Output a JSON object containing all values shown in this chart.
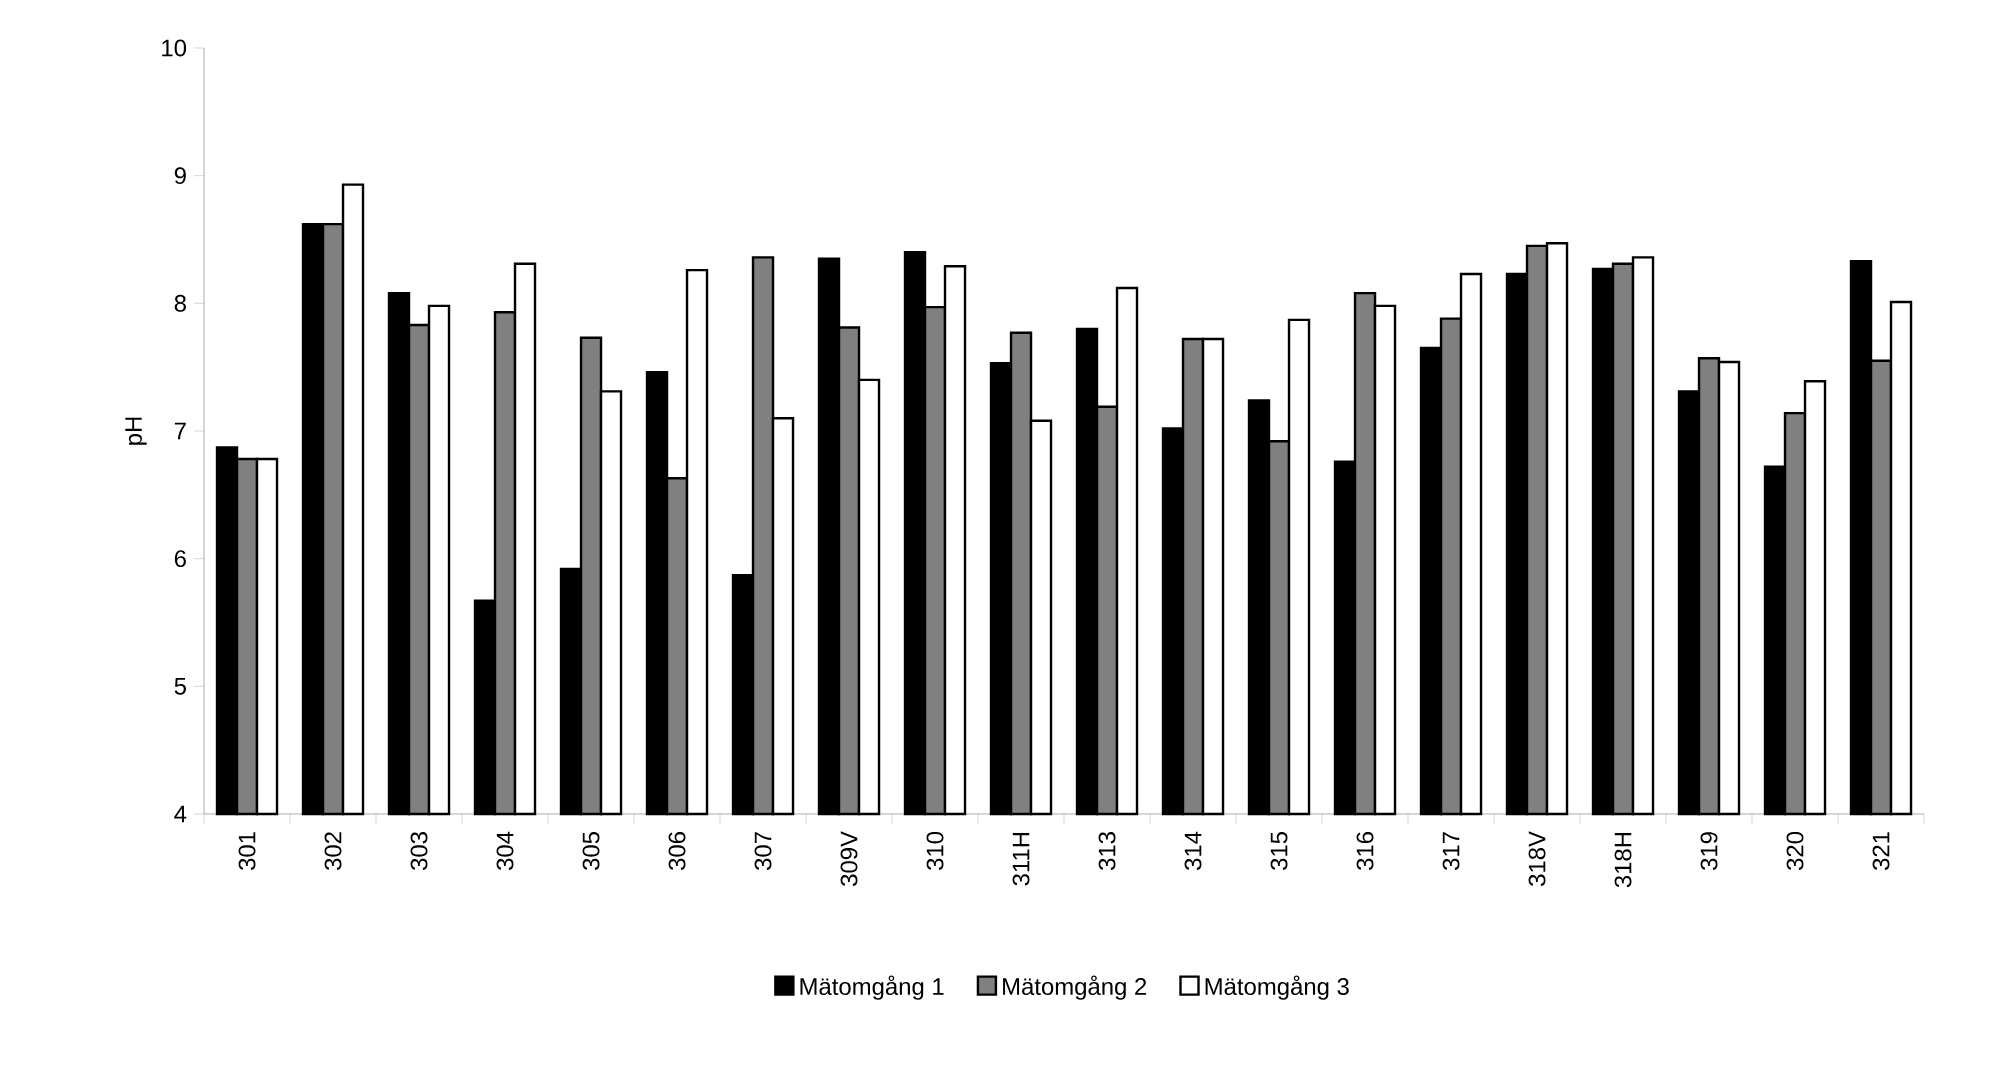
{
  "chart_data": {
    "type": "bar",
    "ylabel": "pH",
    "categories": [
      "301",
      "302",
      "303",
      "304",
      "305",
      "306",
      "307",
      "309V",
      "310",
      "311H",
      "313",
      "314",
      "315",
      "316",
      "317",
      "318V",
      "318H",
      "319",
      "320",
      "321"
    ],
    "series": [
      {
        "name": "Mätomgång 1",
        "color": "#000000",
        "values": [
          6.87,
          8.62,
          8.08,
          5.67,
          5.92,
          7.46,
          5.87,
          8.35,
          8.4,
          7.53,
          7.8,
          7.02,
          7.24,
          6.76,
          7.65,
          8.23,
          8.27,
          7.31,
          6.72,
          8.33
        ]
      },
      {
        "name": "Mätomgång 2",
        "color": "#808080",
        "values": [
          6.78,
          8.62,
          7.83,
          7.93,
          7.73,
          6.63,
          8.36,
          7.81,
          7.97,
          7.77,
          7.19,
          7.72,
          6.92,
          8.08,
          7.88,
          8.45,
          8.31,
          7.57,
          7.14,
          7.55
        ]
      },
      {
        "name": "Mätomgång 3",
        "color": "#ffffff",
        "values": [
          6.78,
          8.93,
          7.98,
          8.31,
          7.31,
          8.26,
          7.1,
          7.4,
          8.29,
          7.08,
          8.12,
          7.72,
          7.87,
          7.98,
          8.23,
          8.47,
          8.36,
          7.54,
          7.39,
          8.01
        ]
      }
    ],
    "ylim": [
      4,
      10
    ],
    "yticks": [
      4,
      5,
      6,
      7,
      8,
      9,
      10
    ],
    "grid": false,
    "legend": "bottom"
  }
}
